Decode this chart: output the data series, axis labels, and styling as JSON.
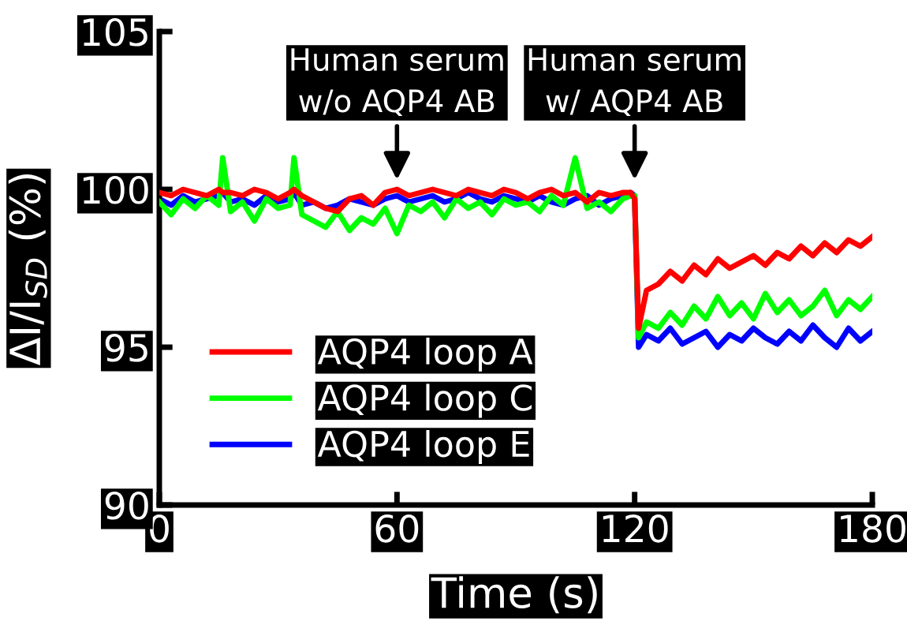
{
  "chart_data": {
    "type": "line",
    "xlabel": "Time (s)",
    "ylabel": "ΔI/I$_{SD}$ (%)",
    "xlim": [
      0,
      180
    ],
    "ylim": [
      90,
      105
    ],
    "xticks": [
      0,
      60,
      120,
      180
    ],
    "yticks": [
      90,
      95,
      100,
      105
    ],
    "grid": false,
    "legend": "bottom left",
    "marker": "none",
    "line_style": "solid",
    "x": [
      0,
      3,
      6,
      9,
      12,
      15,
      16,
      18,
      21,
      24,
      27,
      30,
      33,
      34,
      36,
      39,
      42,
      45,
      48,
      51,
      54,
      57,
      60,
      63,
      66,
      69,
      72,
      75,
      78,
      81,
      84,
      87,
      90,
      93,
      96,
      99,
      102,
      105,
      108,
      111,
      114,
      117,
      119,
      120,
      121,
      123,
      126,
      129,
      132,
      135,
      138,
      141,
      144,
      147,
      150,
      153,
      156,
      159,
      162,
      165,
      168,
      171,
      174,
      177,
      180
    ],
    "series": [
      {
        "name": "AQP4 loop E",
        "color": "#0000ff",
        "values": [
          99.7,
          99.5,
          99.8,
          99.6,
          99.7,
          99.8,
          99.9,
          99.6,
          99.7,
          99.5,
          99.8,
          99.6,
          99.7,
          99.9,
          99.5,
          99.6,
          99.4,
          99.5,
          99.7,
          99.6,
          99.5,
          99.7,
          99.8,
          99.6,
          99.7,
          99.8,
          99.6,
          99.7,
          99.9,
          99.7,
          99.6,
          99.8,
          99.7,
          99.6,
          99.8,
          99.6,
          99.5,
          99.7,
          99.8,
          99.5,
          99.7,
          99.8,
          99.9,
          99.8,
          95.0,
          95.4,
          95.2,
          95.6,
          95.1,
          95.3,
          95.5,
          95.0,
          95.4,
          95.2,
          95.6,
          95.3,
          95.1,
          95.5,
          95.2,
          95.7,
          95.3,
          95.0,
          95.6,
          95.2,
          95.5
        ]
      },
      {
        "name": "AQP4 loop C",
        "color": "#00ff00",
        "values": [
          99.6,
          99.2,
          99.7,
          99.4,
          99.8,
          99.5,
          101.0,
          99.3,
          99.6,
          99.0,
          99.7,
          99.4,
          99.5,
          101.0,
          99.2,
          99.0,
          98.8,
          99.3,
          98.7,
          99.1,
          98.9,
          99.4,
          98.6,
          99.5,
          99.3,
          99.6,
          99.1,
          99.7,
          99.4,
          99.6,
          99.2,
          99.7,
          99.5,
          99.6,
          99.3,
          99.8,
          99.5,
          101.0,
          99.4,
          99.6,
          99.3,
          99.7,
          99.8,
          99.8,
          95.3,
          95.8,
          95.6,
          96.1,
          95.7,
          96.3,
          95.9,
          96.6,
          96.0,
          96.4,
          95.9,
          96.7,
          96.1,
          96.5,
          96.0,
          96.3,
          96.8,
          96.0,
          96.5,
          96.2,
          96.6
        ]
      },
      {
        "name": "AQP4 loop A",
        "color": "#ff0000",
        "values": [
          99.9,
          99.8,
          100.0,
          99.9,
          99.8,
          100.0,
          99.9,
          99.9,
          99.8,
          100.0,
          99.9,
          99.7,
          99.9,
          100.0,
          99.8,
          99.6,
          99.4,
          99.3,
          99.7,
          99.8,
          99.5,
          99.9,
          100.0,
          99.8,
          99.9,
          100.0,
          99.9,
          99.8,
          100.0,
          99.9,
          99.8,
          100.0,
          99.9,
          99.7,
          99.9,
          100.0,
          99.8,
          99.9,
          99.6,
          99.9,
          99.8,
          99.9,
          99.9,
          99.7,
          95.6,
          96.8,
          97.0,
          97.4,
          97.1,
          97.6,
          97.3,
          97.8,
          97.5,
          97.7,
          97.9,
          97.6,
          98.0,
          97.8,
          98.2,
          97.9,
          98.3,
          98.0,
          98.4,
          98.2,
          98.5
        ]
      }
    ],
    "annotations": [
      "Human serum\nw/o AQP4 AB",
      "Human serum\nw/ AQP4 AB"
    ]
  }
}
